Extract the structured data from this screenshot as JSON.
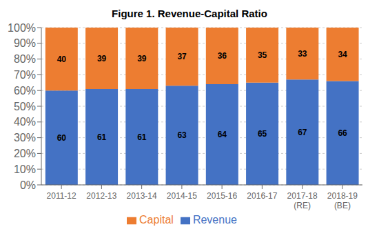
{
  "chart_data": {
    "type": "bar",
    "title": "Figure 1. Revenue-Capital Ratio",
    "categories": [
      "2011-12",
      "2012-13",
      "2013-14",
      "2014-15",
      "2015-16",
      "2016-17",
      "2017-18\n(RE)",
      "2018-19\n(BE)"
    ],
    "series": [
      {
        "name": "Revenue",
        "color": "#4472C4",
        "values": [
          60,
          61,
          61,
          63,
          64,
          65,
          67,
          66
        ]
      },
      {
        "name": "Capital",
        "color": "#ED7D31",
        "values": [
          40,
          39,
          39,
          37,
          36,
          35,
          33,
          34
        ]
      }
    ],
    "stacked": true,
    "ylim": [
      0,
      100
    ],
    "yticks": [
      {
        "value": 0,
        "label": "0%"
      },
      {
        "value": 10,
        "label": "10%"
      },
      {
        "value": 20,
        "label": "20%"
      },
      {
        "value": 30,
        "label": "30%"
      },
      {
        "value": 40,
        "label": "40%"
      },
      {
        "value": 50,
        "label": "50%"
      },
      {
        "value": 60,
        "label": "60%"
      },
      {
        "value": 70,
        "label": "70%"
      },
      {
        "value": 80,
        "label": "80%"
      },
      {
        "value": 90,
        "label": "90%"
      },
      {
        "value": 100,
        "label": "100%"
      }
    ],
    "grid": true,
    "legend": "bottom",
    "data_labels": true
  }
}
